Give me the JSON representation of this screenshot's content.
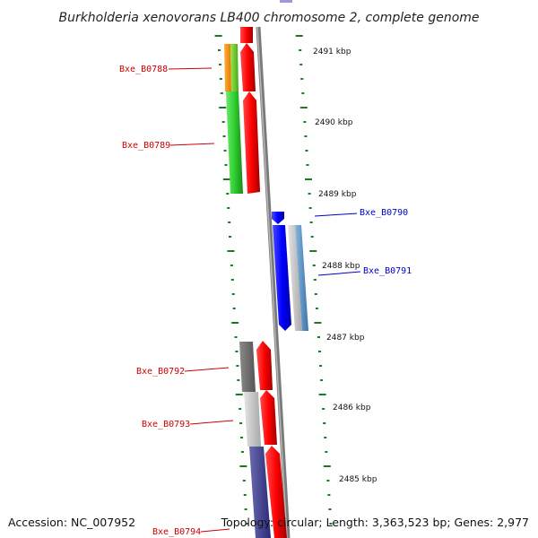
{
  "title": "Burkholderia xenovorans LB400 chromosome 2, complete genome",
  "footer": {
    "accession": "Accession: NC_007952",
    "topology": "Topology: circular; Length: 3,363,523 bp; Genes: 2,977"
  },
  "colors": {
    "forward_label": "#cc0000",
    "reverse_label": "#0000cc",
    "backbone": "#808080",
    "tick": "#1a7a1a"
  },
  "kbp_labels": [
    "2491 kbp",
    "2490 kbp",
    "2489 kbp",
    "2488 kbp",
    "2487 kbp",
    "2486 kbp",
    "2485 kbp"
  ],
  "gene_labels": {
    "b0788": "Bxe_B0788",
    "b0789": "Bxe_B0789",
    "b0790": "Bxe_B0790",
    "b0791": "Bxe_B0791",
    "b0792": "Bxe_B0792",
    "b0793": "Bxe_B0793",
    "b0794": "Bxe_B0794"
  }
}
